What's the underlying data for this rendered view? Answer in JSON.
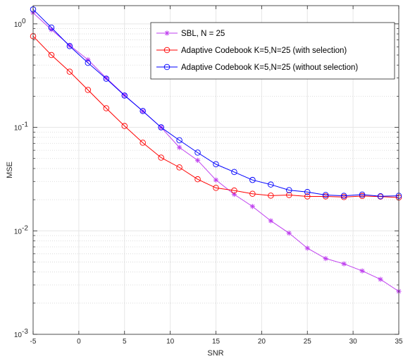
{
  "chart_data": {
    "type": "line",
    "xlabel": "SNR",
    "ylabel": "MSE",
    "xlim": [
      -5,
      35
    ],
    "ylim": [
      0.001,
      1.5
    ],
    "yscale": "log",
    "grid": true,
    "legend_position": "top-right",
    "x_ticks": [
      -5,
      0,
      5,
      10,
      15,
      20,
      25,
      30,
      35
    ],
    "x_tick_labels": [
      "-5",
      "0",
      "5",
      "10",
      "15",
      "20",
      "25",
      "30",
      "35"
    ],
    "y_ticks": [
      0.001,
      0.01,
      0.1,
      1
    ],
    "y_tick_labels": [
      {
        "base": "10",
        "exp": "-3"
      },
      {
        "base": "10",
        "exp": "-2"
      },
      {
        "base": "10",
        "exp": "-1"
      },
      {
        "base": "10",
        "exp": "0"
      }
    ],
    "x": [
      -5,
      -3,
      -1,
      1,
      3,
      5,
      7,
      9,
      11,
      13,
      15,
      17,
      19,
      21,
      23,
      25,
      27,
      29,
      31,
      33,
      35
    ],
    "series": [
      {
        "name": "SBL, N = 25",
        "color": "#bf3fef",
        "marker": "star",
        "values": [
          1.28,
          0.88,
          0.62,
          0.45,
          0.3,
          0.205,
          0.143,
          0.1,
          0.064,
          0.048,
          0.031,
          0.0225,
          0.0172,
          0.0125,
          0.0095,
          0.0068,
          0.0054,
          0.0048,
          0.0041,
          0.0034,
          0.0026
        ]
      },
      {
        "name": "Adaptive Codebook K=5,N=25 (with selection)",
        "color": "#ff0000",
        "marker": "circle",
        "values": [
          0.76,
          0.5,
          0.345,
          0.23,
          0.153,
          0.103,
          0.071,
          0.051,
          0.041,
          0.0315,
          0.026,
          0.0245,
          0.0228,
          0.0219,
          0.0222,
          0.0215,
          0.0215,
          0.0212,
          0.0217,
          0.0214,
          0.021
        ]
      },
      {
        "name": "Adaptive Codebook K=5,N=25 (without selection)",
        "color": "#0000ff",
        "marker": "circle",
        "values": [
          1.38,
          0.92,
          0.61,
          0.42,
          0.295,
          0.203,
          0.144,
          0.1,
          0.075,
          0.057,
          0.044,
          0.037,
          0.031,
          0.028,
          0.0247,
          0.0237,
          0.0222,
          0.0218,
          0.0224,
          0.0216,
          0.0218
        ]
      }
    ]
  }
}
